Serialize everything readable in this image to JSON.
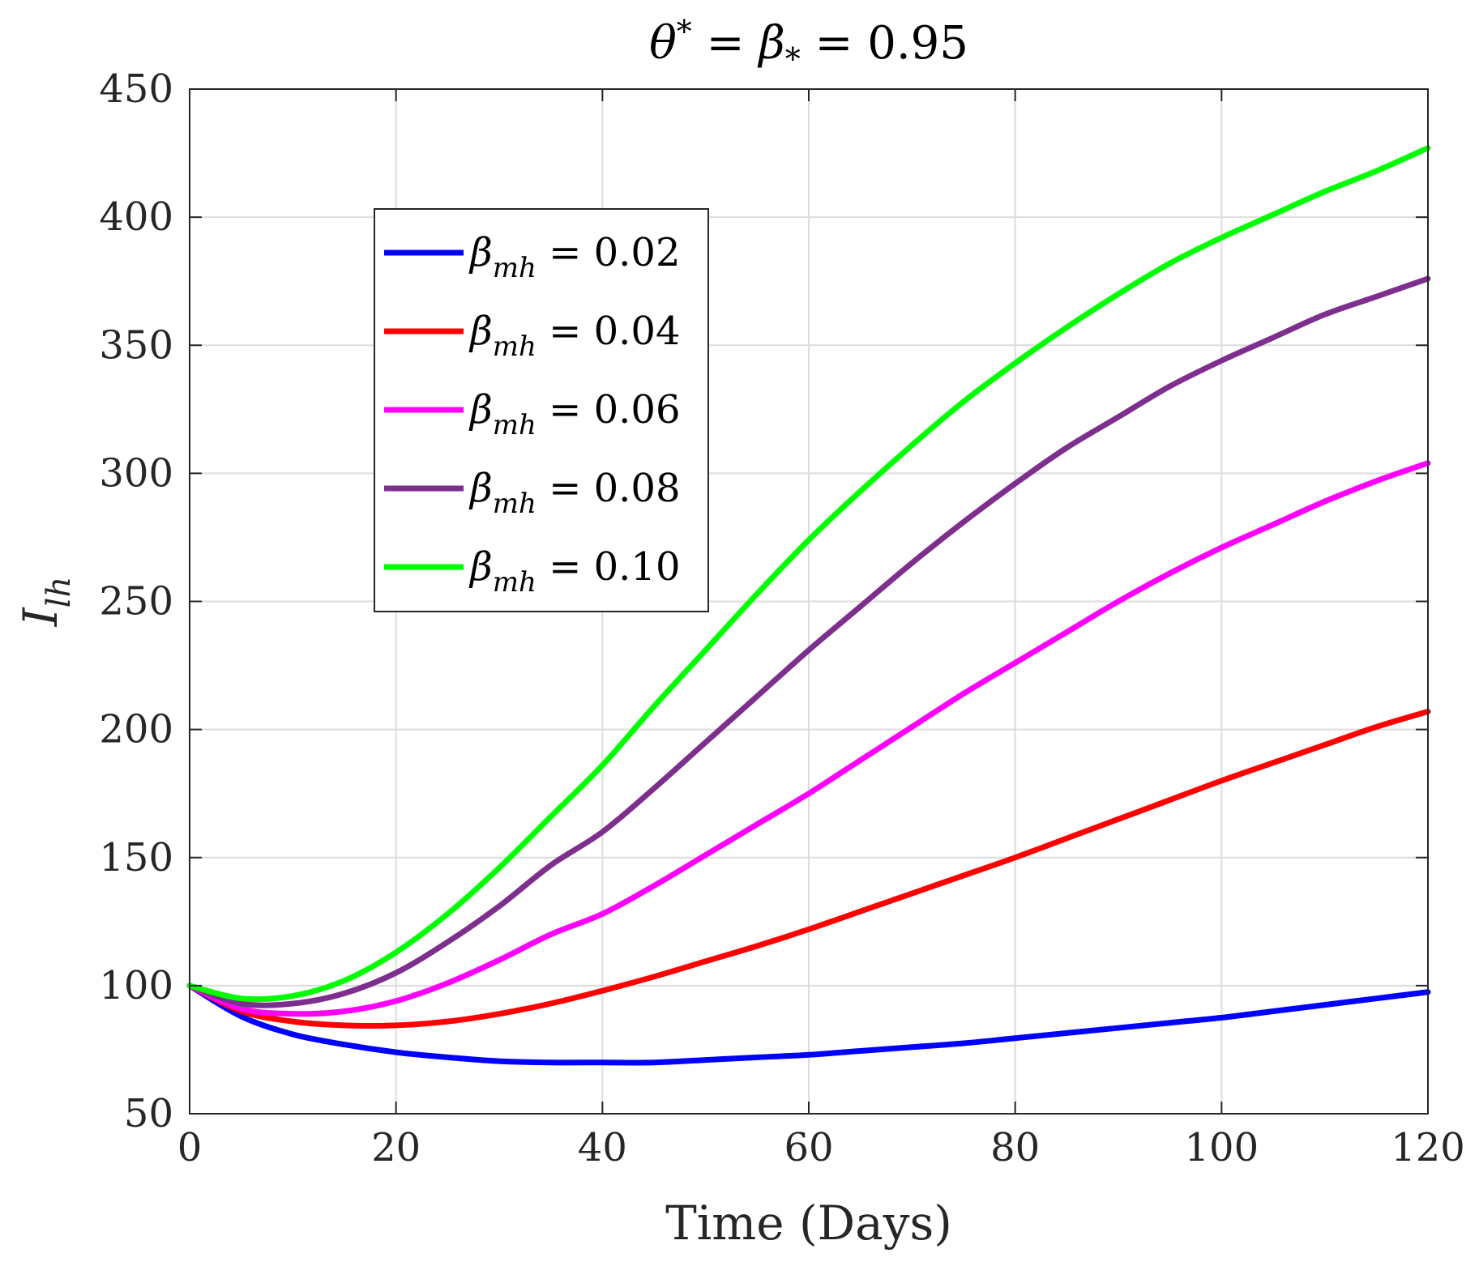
{
  "chart_data": {
    "type": "line",
    "title": "θ* = β* = 0.95",
    "title_parts": {
      "theta": "θ",
      "sup": "*",
      "eq": " = ",
      "beta": "β",
      "sub": "*",
      "value": " = 0.95"
    },
    "xlabel": "Time (Days)",
    "ylabel": "I_lh",
    "ylabel_parts": {
      "main": "I",
      "sub": "lh"
    },
    "xlim": [
      0,
      120
    ],
    "ylim": [
      50,
      450
    ],
    "xticks": [
      0,
      20,
      40,
      60,
      80,
      100,
      120
    ],
    "yticks": [
      50,
      100,
      150,
      200,
      250,
      300,
      350,
      400,
      450
    ],
    "grid": true,
    "legend_position": "upper-left-inside",
    "x": [
      0,
      5,
      10,
      15,
      20,
      25,
      30,
      35,
      40,
      45,
      50,
      55,
      60,
      65,
      70,
      75,
      80,
      85,
      90,
      95,
      100,
      105,
      110,
      115,
      120
    ],
    "series": [
      {
        "name": "βmh = 0.02",
        "greek": "β",
        "sub": "mh",
        "value_text": " = 0.02",
        "color": "#0000ff",
        "values": [
          100,
          88,
          81,
          77,
          74,
          72,
          70.5,
          70,
          70,
          70,
          71,
          72,
          73,
          74.5,
          76,
          77.5,
          79.5,
          81.5,
          83.5,
          85.5,
          87.5,
          90,
          92.5,
          95,
          97.5
        ]
      },
      {
        "name": "βmh = 0.04",
        "greek": "β",
        "sub": "mh",
        "value_text": " = 0.04",
        "color": "#ff0000",
        "values": [
          100,
          90,
          86,
          84.5,
          84.5,
          86,
          89,
          93,
          98,
          103.5,
          109.5,
          115.5,
          122,
          129,
          136,
          143,
          150,
          157.5,
          165,
          172.5,
          180,
          187,
          194,
          201,
          207
        ]
      },
      {
        "name": "βmh = 0.06",
        "greek": "β",
        "sub": "mh",
        "value_text": " = 0.06",
        "color": "#ff00ff",
        "values": [
          100,
          91,
          89,
          90,
          94,
          101,
          110,
          120,
          128,
          139,
          151,
          163,
          175,
          188,
          201,
          214,
          226,
          238,
          250,
          261,
          271,
          280,
          289,
          297,
          304
        ]
      },
      {
        "name": "βmh = 0.08",
        "greek": "β",
        "sub": "mh",
        "value_text": " = 0.08",
        "color": "#7e2f8e",
        "values": [
          100,
          93,
          93,
          97,
          105,
          117,
          131,
          147,
          160,
          177,
          195,
          213,
          231,
          248,
          265,
          281,
          296,
          310,
          322,
          334,
          344,
          353,
          362,
          369,
          376
        ]
      },
      {
        "name": "βmh = 0.10",
        "greek": "β",
        "sub": "mh",
        "value_text": " = 0.10",
        "color": "#00ff00",
        "values": [
          100,
          95,
          96,
          102,
          113,
          128,
          146,
          166,
          186,
          209,
          231,
          253,
          274,
          293,
          311,
          328,
          343,
          357,
          370,
          382,
          392,
          401,
          410,
          418,
          427
        ]
      }
    ]
  }
}
